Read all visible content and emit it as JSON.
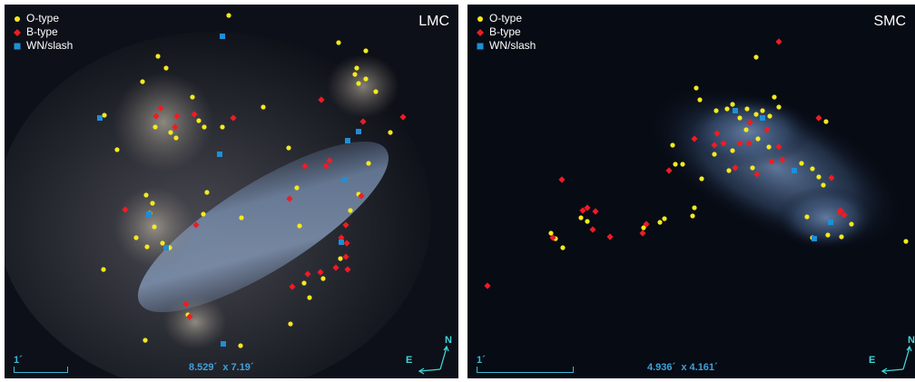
{
  "colors": {
    "o_type": "#f5ea1a",
    "b_type": "#ee1c24",
    "wn_slash": "#1e8fd6",
    "annotation": "#3fb8d4"
  },
  "legend": {
    "o_type": "O-type",
    "b_type": "B-type",
    "wn_slash": "WN/slash"
  },
  "panels": [
    {
      "label": "LMC",
      "scale_label": "1´",
      "dimensions": {
        "width": "8.529´",
        "times": "x",
        "height": "7.19´"
      },
      "compass": {
        "north": "N",
        "east": "E"
      },
      "stars": {
        "o_type": [
          [
            115,
            127
          ],
          [
            110,
            130
          ],
          [
            129,
            165
          ],
          [
            174,
            62
          ],
          [
            183,
            75
          ],
          [
            157,
            90
          ],
          [
            171,
            140
          ],
          [
            188,
            146
          ],
          [
            212,
            107
          ],
          [
            219,
            133
          ],
          [
            225,
            140
          ],
          [
            194,
            152
          ],
          [
            290,
            118
          ],
          [
            318,
            163
          ],
          [
            252,
            17
          ],
          [
            373,
            47
          ],
          [
            403,
            56
          ],
          [
            391,
            82
          ],
          [
            395,
            92
          ],
          [
            403,
            87
          ],
          [
            393,
            75
          ],
          [
            414,
            101
          ],
          [
            161,
            215
          ],
          [
            168,
            224
          ],
          [
            165,
            235
          ],
          [
            170,
            250
          ],
          [
            150,
            262
          ],
          [
            162,
            272
          ],
          [
            179,
            268
          ],
          [
            187,
            273
          ],
          [
            114,
            297
          ],
          [
            228,
            212
          ],
          [
            224,
            236
          ],
          [
            266,
            240
          ],
          [
            327,
            207
          ],
          [
            330,
            249
          ],
          [
            335,
            312
          ],
          [
            341,
            328
          ],
          [
            356,
            307
          ],
          [
            375,
            285
          ],
          [
            386,
            232
          ],
          [
            395,
            214
          ],
          [
            406,
            180
          ],
          [
            430,
            146
          ],
          [
            245,
            140
          ],
          [
            320,
            357
          ],
          [
            265,
            381
          ],
          [
            160,
            375
          ],
          [
            207,
            347
          ]
        ],
        "b_type": [
          [
            172,
            128
          ],
          [
            177,
            119
          ],
          [
            195,
            128
          ],
          [
            214,
            126
          ],
          [
            257,
            130
          ],
          [
            216,
            248
          ],
          [
            319,
            219
          ],
          [
            336,
            183
          ],
          [
            359,
            183
          ],
          [
            363,
            177
          ],
          [
            354,
            110
          ],
          [
            400,
            134
          ],
          [
            398,
            216
          ],
          [
            381,
            248
          ],
          [
            376,
            262
          ],
          [
            382,
            268
          ],
          [
            381,
            283
          ],
          [
            383,
            297
          ],
          [
            370,
            295
          ],
          [
            353,
            300
          ],
          [
            339,
            302
          ],
          [
            322,
            316
          ],
          [
            444,
            129
          ],
          [
            193,
            140
          ],
          [
            205,
            335
          ],
          [
            209,
            349
          ],
          [
            138,
            231
          ]
        ],
        "wn_slash": [
          [
            245,
            40
          ],
          [
            110,
            130
          ],
          [
            164,
            236
          ],
          [
            183,
            273
          ],
          [
            242,
            170
          ],
          [
            380,
            198
          ],
          [
            383,
            155
          ],
          [
            395,
            145
          ],
          [
            376,
            267
          ],
          [
            246,
            379
          ]
        ]
      }
    },
    {
      "label": "SMC",
      "scale_label": "1´",
      "dimensions": {
        "width": "4.936´",
        "times": "x",
        "height": "4.161´"
      },
      "compass": {
        "north": "N",
        "east": "E"
      },
      "stars": {
        "o_type": [
          [
            833,
            63
          ],
          [
            767,
            97
          ],
          [
            771,
            110
          ],
          [
            789,
            122
          ],
          [
            801,
            120
          ],
          [
            807,
            115
          ],
          [
            815,
            130
          ],
          [
            823,
            120
          ],
          [
            833,
            126
          ],
          [
            840,
            122
          ],
          [
            848,
            128
          ],
          [
            853,
            107
          ],
          [
            858,
            118
          ],
          [
            822,
            143
          ],
          [
            835,
            153
          ],
          [
            847,
            162
          ],
          [
            807,
            166
          ],
          [
            787,
            170
          ],
          [
            829,
            185
          ],
          [
            741,
            160
          ],
          [
            744,
            181
          ],
          [
            752,
            181
          ],
          [
            773,
            197
          ],
          [
            803,
            188
          ],
          [
            883,
            180
          ],
          [
            895,
            186
          ],
          [
            902,
            195
          ],
          [
            907,
            204
          ],
          [
            910,
            134
          ],
          [
            732,
            241
          ],
          [
            727,
            245
          ],
          [
            709,
            251
          ],
          [
            765,
            229
          ],
          [
            763,
            238
          ],
          [
            889,
            239
          ],
          [
            895,
            262
          ],
          [
            912,
            259
          ],
          [
            927,
            261
          ],
          [
            938,
            247
          ],
          [
            998,
            266
          ],
          [
            607,
            257
          ],
          [
            612,
            263
          ],
          [
            620,
            273
          ],
          [
            640,
            240
          ],
          [
            647,
            244
          ]
        ],
        "b_type": [
          [
            858,
            46
          ],
          [
            790,
            147
          ],
          [
            787,
            160
          ],
          [
            797,
            158
          ],
          [
            815,
            158
          ],
          [
            825,
            158
          ],
          [
            826,
            135
          ],
          [
            845,
            143
          ],
          [
            858,
            162
          ],
          [
            862,
            176
          ],
          [
            850,
            178
          ],
          [
            834,
            192
          ],
          [
            810,
            185
          ],
          [
            765,
            153
          ],
          [
            737,
            188
          ],
          [
            902,
            130
          ],
          [
            916,
            196
          ],
          [
            926,
            232
          ],
          [
            930,
            237
          ],
          [
            925,
            234
          ],
          [
            712,
            247
          ],
          [
            708,
            257
          ],
          [
            672,
            261
          ],
          [
            653,
            253
          ],
          [
            656,
            233
          ],
          [
            642,
            232
          ],
          [
            647,
            229
          ],
          [
            619,
            198
          ],
          [
            609,
            262
          ],
          [
            537,
            315
          ]
        ],
        "wn_slash": [
          [
            810,
            122
          ],
          [
            840,
            130
          ],
          [
            875,
            188
          ],
          [
            915,
            245
          ],
          [
            897,
            263
          ]
        ]
      }
    }
  ]
}
